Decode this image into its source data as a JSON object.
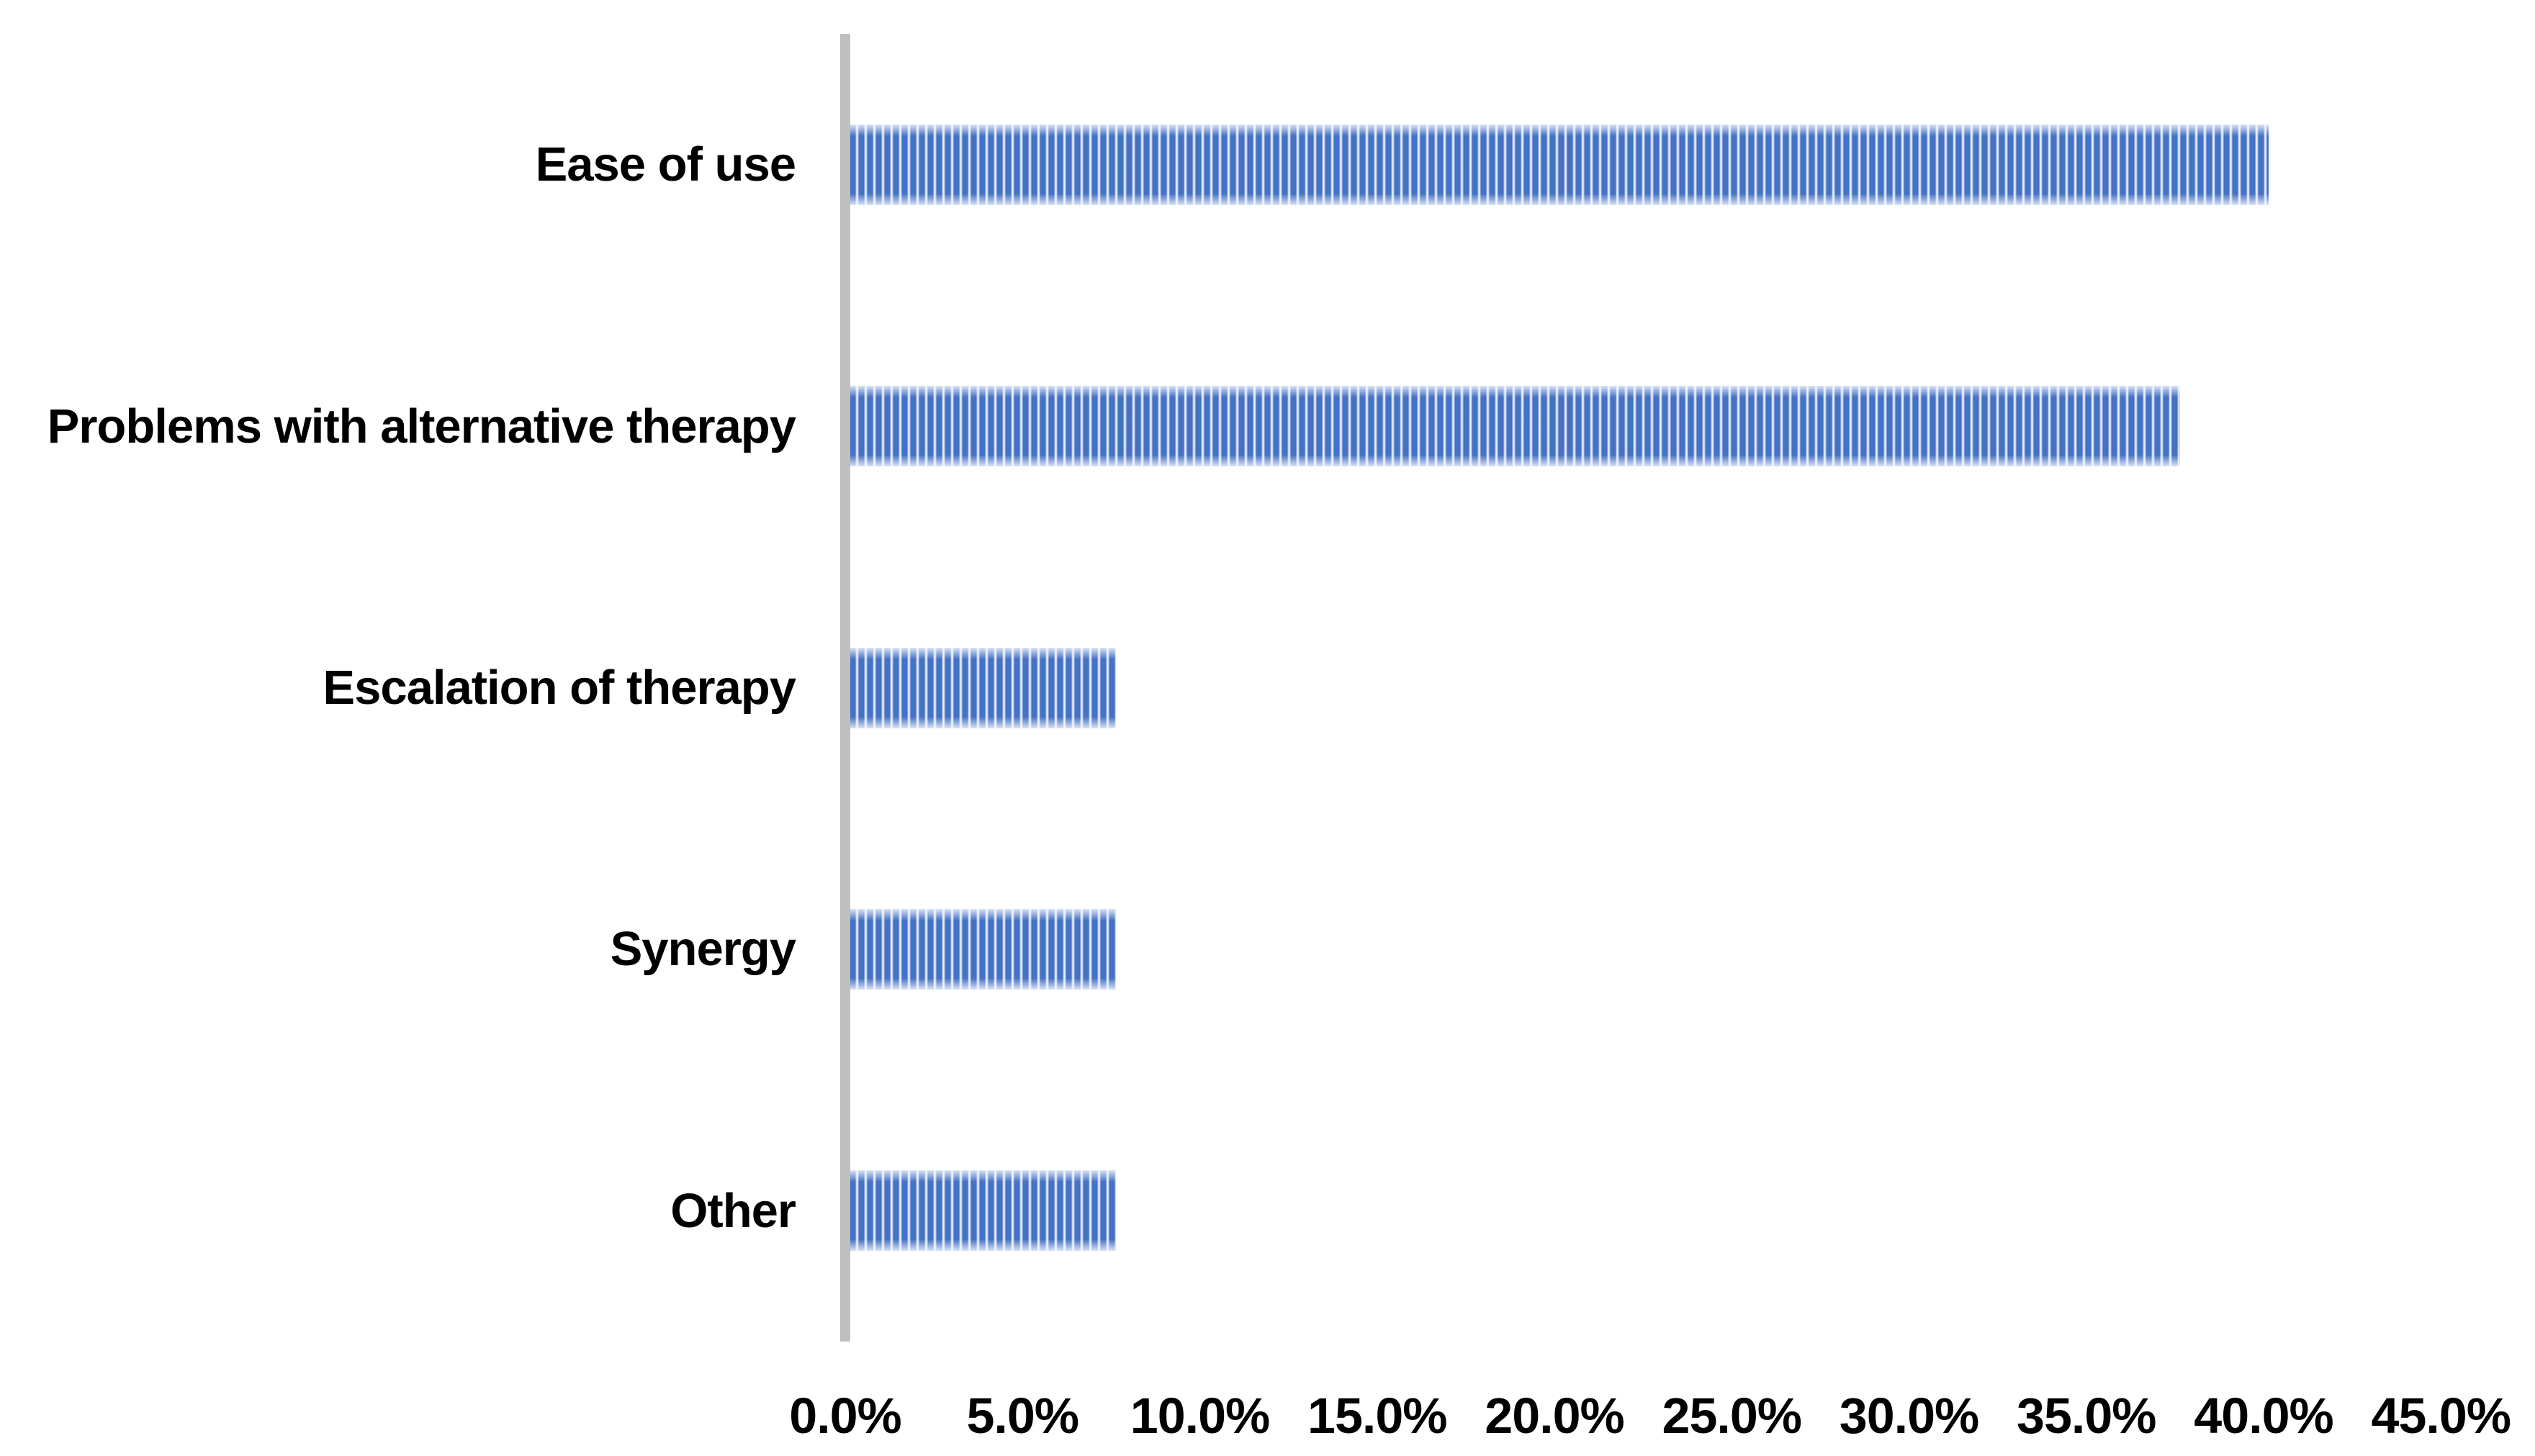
{
  "chart_data": {
    "type": "bar",
    "orientation": "horizontal",
    "title": "",
    "xlabel": "",
    "ylabel": "",
    "categories": [
      "Ease of use",
      "Problems with alternative therapy",
      "Escalation of therapy",
      "Synergy",
      "Other"
    ],
    "values": [
      40.0,
      37.5,
      7.5,
      7.5,
      7.5
    ],
    "value_unit": "%",
    "xlim": [
      0,
      45
    ],
    "x_tick_step": 5,
    "x_ticks": [
      "0.0%",
      "5.0%",
      "10.0%",
      "15.0%",
      "20.0%",
      "25.0%",
      "30.0%",
      "35.0%",
      "40.0%",
      "45.0%"
    ],
    "grid": false,
    "legend": false,
    "bar_pattern": "light-vertical-stripes",
    "colors": {
      "bar_stripe": "#4472c4",
      "bar_stripe_light": "#eef2fb",
      "axis_line": "#bfbfbf",
      "text": "#000000",
      "background": "#ffffff"
    }
  }
}
